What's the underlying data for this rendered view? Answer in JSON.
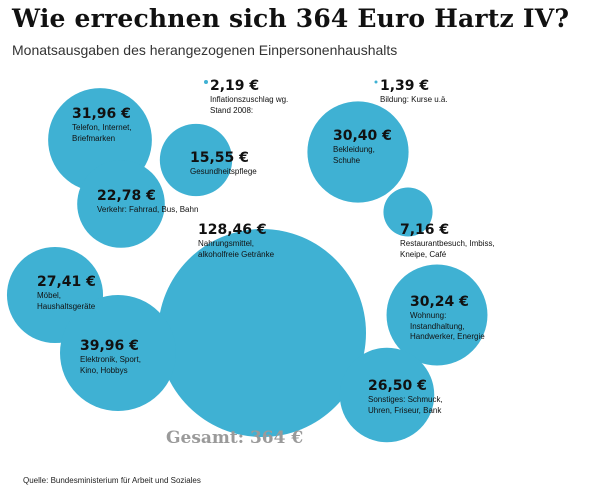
{
  "title": "Wie errechnen sich 364 Euro Hartz IV?",
  "subtitle": "Monatsausgaben des herangezogenen Einpersonenhaushalts",
  "total": "Gesamt: 364  €",
  "source": "Quelle: Bundesministerium für Arbeit und Soziales",
  "colors": {
    "bubble": "#3fb1d3",
    "total_text": "#9a9a9a"
  },
  "chart_data": {
    "type": "bubble",
    "unit": "€",
    "items": [
      {
        "value": 31.96,
        "value_label": "31,96 €",
        "lines": [
          "Telefon, Internet,",
          "Briefmarken"
        ]
      },
      {
        "value": 2.19,
        "value_label": "2,19 €",
        "lines": [
          "Inflationszuschlag wg.",
          "Stand 2008:"
        ]
      },
      {
        "value": 1.39,
        "value_label": "1,39 €",
        "lines": [
          "Bildung: Kurse u.ä."
        ]
      },
      {
        "value": 15.55,
        "value_label": "15,55 €",
        "lines": [
          "Gesundheitspflege"
        ]
      },
      {
        "value": 30.4,
        "value_label": "30,40 €",
        "lines": [
          "Bekleidung,",
          "Schuhe"
        ]
      },
      {
        "value": 22.78,
        "value_label": "22,78 €",
        "lines": [
          "Verkehr: Fahrrad, Bus, Bahn"
        ]
      },
      {
        "value": 7.16,
        "value_label": "7,16 €",
        "lines": [
          "Restaurantbesuch, Imbiss,",
          "Kneipe, Café"
        ]
      },
      {
        "value": 128.46,
        "value_label": "128,46 €",
        "lines": [
          "Nahrungsmittel,",
          "alkoholfreie Getränke"
        ]
      },
      {
        "value": 27.41,
        "value_label": "27,41 €",
        "lines": [
          "Möbel,",
          "Haushaltsgeräte"
        ]
      },
      {
        "value": 30.24,
        "value_label": "30,24 €",
        "lines": [
          "Wohnung:",
          "Instandhaltung,",
          "Handwerker, Energie"
        ]
      },
      {
        "value": 39.96,
        "value_label": "39,96 €",
        "lines": [
          "Elektronik, Sport,",
          "Kino, Hobbys"
        ]
      },
      {
        "value": 26.5,
        "value_label": "26,50 €",
        "lines": [
          "Sonstiges: Schmuck,",
          "Uhren, Friseur, Bank"
        ]
      }
    ]
  }
}
